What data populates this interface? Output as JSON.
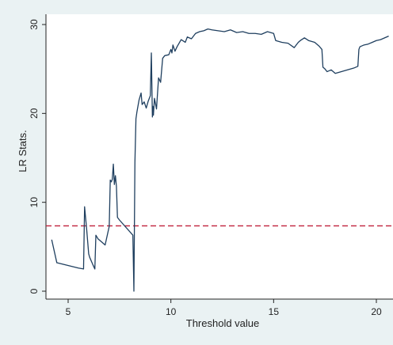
{
  "chart_data": {
    "type": "line",
    "title": "",
    "xlabel": "Threshold value",
    "ylabel": "LR Stats.",
    "xlim": [
      4,
      20.6
    ],
    "ylim": [
      0,
      30
    ],
    "x_ticks": [
      5,
      10,
      15,
      20
    ],
    "y_ticks": [
      0,
      10,
      20,
      30
    ],
    "grid": false,
    "legend": "none",
    "colors": {
      "background": "#eaf2f3",
      "plot_background": "#ffffff",
      "series_line": "#1f3f5f",
      "reference_line": "#c0203a",
      "axis": "#222222"
    },
    "series": [
      {
        "values_x": [
          4.2,
          4.45,
          5.5,
          5.75,
          5.8,
          5.9,
          6.0,
          6.05,
          6.2,
          6.3,
          6.35,
          6.45,
          6.8,
          7.0,
          7.05,
          7.1,
          7.15,
          7.2,
          7.25,
          7.3,
          7.35,
          7.4,
          7.5,
          8.15,
          8.2,
          8.25,
          8.3,
          8.35,
          8.45,
          8.55,
          8.6,
          8.7,
          8.8,
          8.9,
          9.0,
          9.05,
          9.1,
          9.12,
          9.15,
          9.2,
          9.3,
          9.4,
          9.5,
          9.6,
          9.7,
          9.9,
          10.0,
          10.05,
          10.1,
          10.2,
          10.3,
          10.5,
          10.7,
          10.8,
          11.0,
          11.2,
          11.4,
          11.6,
          11.8,
          12.0,
          12.3,
          12.6,
          12.9,
          13.2,
          13.5,
          13.8,
          14.1,
          14.4,
          14.7,
          15.0,
          15.1,
          15.4,
          15.7,
          16.0,
          16.2,
          16.3,
          16.5,
          16.7,
          17.0,
          17.2,
          17.35,
          17.4,
          17.5,
          17.6,
          17.7,
          17.8,
          18.0,
          18.3,
          18.6,
          18.9,
          19.1,
          19.15,
          19.2,
          19.4,
          19.6,
          19.8,
          20.0,
          20.2,
          20.4,
          20.6
        ],
        "values_y": [
          5.8,
          3.2,
          2.6,
          2.5,
          9.5,
          7.0,
          4.2,
          3.8,
          3.0,
          2.5,
          6.3,
          5.9,
          5.2,
          7.3,
          12.5,
          12.3,
          12.6,
          14.3,
          12.0,
          13.0,
          11.8,
          8.3,
          8.0,
          6.3,
          0.0,
          14.5,
          19.4,
          20.2,
          21.5,
          22.3,
          21.0,
          21.3,
          20.6,
          21.4,
          22.0,
          26.8,
          19.6,
          20.8,
          19.8,
          21.7,
          20.5,
          24.0,
          23.5,
          26.2,
          26.5,
          26.6,
          27.2,
          26.8,
          27.7,
          27.0,
          27.5,
          28.3,
          28.0,
          28.6,
          28.4,
          29.0,
          29.2,
          29.3,
          29.5,
          29.4,
          29.3,
          29.2,
          29.4,
          29.1,
          29.2,
          29.0,
          29.0,
          28.9,
          29.2,
          29.0,
          28.2,
          28.0,
          27.9,
          27.4,
          28.0,
          28.2,
          28.5,
          28.2,
          28.0,
          27.6,
          27.2,
          25.2,
          25.0,
          24.7,
          24.8,
          24.9,
          24.5,
          24.7,
          24.9,
          25.1,
          25.3,
          27.2,
          27.5,
          27.7,
          27.8,
          28.0,
          28.2,
          28.3,
          28.5,
          28.7
        ]
      }
    ],
    "reference_line": {
      "y": 7.35,
      "style": "dashed"
    }
  }
}
